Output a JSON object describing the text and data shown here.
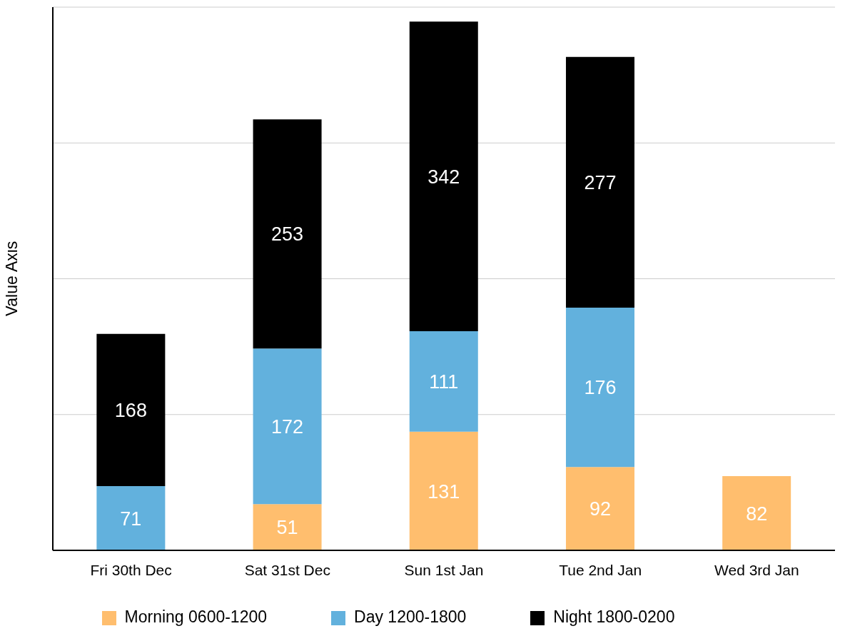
{
  "chart_data": {
    "type": "bar",
    "stacked": true,
    "ylabel": "Value Axis",
    "categories": [
      "Fri 30th Dec",
      "Sat 31st Dec",
      "Sun 1st Jan",
      "Tue 2nd Jan",
      "Wed 3rd Jan"
    ],
    "series": [
      {
        "name": "Morning 0600-1200",
        "color": "#ffbe6e",
        "values": [
          null,
          51,
          131,
          92,
          82
        ]
      },
      {
        "name": "Day 1200-1800",
        "color": "#62b1dd",
        "values": [
          71,
          172,
          111,
          176,
          null
        ]
      },
      {
        "name": "Night 1800-0200",
        "color": "#000000",
        "values": [
          168,
          253,
          342,
          277,
          null
        ]
      }
    ],
    "ylim": [
      0,
      600
    ],
    "yticks": [
      {
        "value": 0,
        "label": null
      },
      {
        "value": 150,
        "label": null
      },
      {
        "value": 300,
        "label": null
      },
      {
        "value": 450,
        "label": null
      },
      {
        "value": 600,
        "label": null
      }
    ],
    "tick_labels": "x",
    "grid": "y",
    "legend": "bottom",
    "data_labels": true
  }
}
